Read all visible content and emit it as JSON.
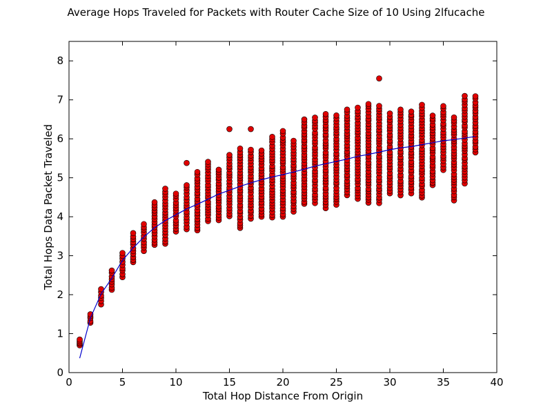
{
  "chart_data": {
    "type": "scatter",
    "title": "Average Hops Traveled for Packets with Router Cache Size of 10 Using 2lfucache",
    "xlabel": "Total Hop Distance From Origin",
    "ylabel": "Total Hops Data Packet Traveled",
    "xlim": [
      0,
      40
    ],
    "ylim": [
      0,
      8.5
    ],
    "xticks": [
      0,
      5,
      10,
      15,
      20,
      25,
      30,
      35,
      40
    ],
    "yticks": [
      0,
      1,
      2,
      3,
      4,
      5,
      6,
      7,
      8
    ],
    "grid": false,
    "colors": {
      "points": "#e00000",
      "point_edge": "#000000",
      "line": "#0000cc"
    },
    "series": [
      {
        "kind": "scatter",
        "ranges": [
          {
            "x": 1,
            "min": 0.7,
            "max": 0.85
          },
          {
            "x": 2,
            "min": 1.28,
            "max": 1.5
          },
          {
            "x": 3,
            "min": 1.75,
            "max": 2.15
          },
          {
            "x": 4,
            "min": 2.12,
            "max": 2.62
          },
          {
            "x": 5,
            "min": 2.45,
            "max": 3.08
          },
          {
            "x": 6,
            "min": 2.82,
            "max": 3.58
          },
          {
            "x": 7,
            "min": 3.12,
            "max": 3.82
          },
          {
            "x": 8,
            "min": 3.28,
            "max": 4.38
          },
          {
            "x": 9,
            "min": 3.3,
            "max": 4.72
          },
          {
            "x": 10,
            "min": 3.62,
            "max": 4.6
          },
          {
            "x": 11,
            "min": 3.68,
            "max": 4.82
          },
          {
            "x": 12,
            "min": 3.65,
            "max": 5.15
          },
          {
            "x": 13,
            "min": 3.88,
            "max": 5.42
          },
          {
            "x": 14,
            "min": 3.9,
            "max": 5.22
          },
          {
            "x": 15,
            "min": 4.0,
            "max": 5.6
          },
          {
            "x": 16,
            "min": 3.7,
            "max": 5.75
          },
          {
            "x": 17,
            "min": 3.95,
            "max": 5.72
          },
          {
            "x": 18,
            "min": 4.0,
            "max": 5.7
          },
          {
            "x": 19,
            "min": 3.98,
            "max": 6.05
          },
          {
            "x": 20,
            "min": 4.0,
            "max": 6.2
          },
          {
            "x": 21,
            "min": 4.12,
            "max": 5.95
          },
          {
            "x": 22,
            "min": 4.32,
            "max": 6.5
          },
          {
            "x": 23,
            "min": 4.35,
            "max": 6.55
          },
          {
            "x": 24,
            "min": 4.22,
            "max": 6.65
          },
          {
            "x": 25,
            "min": 4.3,
            "max": 6.6
          },
          {
            "x": 26,
            "min": 4.55,
            "max": 6.75
          },
          {
            "x": 27,
            "min": 4.45,
            "max": 6.8
          },
          {
            "x": 28,
            "min": 4.35,
            "max": 6.9
          },
          {
            "x": 29,
            "min": 4.35,
            "max": 6.85
          },
          {
            "x": 30,
            "min": 4.6,
            "max": 6.65
          },
          {
            "x": 31,
            "min": 4.55,
            "max": 6.75
          },
          {
            "x": 32,
            "min": 4.6,
            "max": 6.7
          },
          {
            "x": 33,
            "min": 4.48,
            "max": 6.88
          },
          {
            "x": 34,
            "min": 4.8,
            "max": 6.6
          },
          {
            "x": 35,
            "min": 5.2,
            "max": 6.85
          },
          {
            "x": 36,
            "min": 4.42,
            "max": 6.55
          },
          {
            "x": 37,
            "min": 4.85,
            "max": 7.1
          },
          {
            "x": 38,
            "min": 5.65,
            "max": 7.1
          }
        ],
        "outliers": [
          {
            "x": 11,
            "y": 5.38
          },
          {
            "x": 15,
            "y": 6.25
          },
          {
            "x": 17,
            "y": 6.25
          },
          {
            "x": 29,
            "y": 7.55
          }
        ]
      },
      {
        "kind": "line",
        "x": [
          1,
          2,
          3,
          4,
          5,
          6,
          7,
          8,
          9,
          10,
          11,
          12,
          13,
          14,
          15,
          16,
          17,
          18,
          19,
          20,
          21,
          22,
          23,
          24,
          25,
          26,
          27,
          28,
          29,
          30,
          31,
          32,
          33,
          34,
          35,
          36,
          37,
          38
        ],
        "y": [
          0.37,
          1.4,
          2.02,
          2.42,
          2.88,
          3.2,
          3.48,
          3.72,
          3.9,
          4.05,
          4.2,
          4.32,
          4.45,
          4.58,
          4.68,
          4.78,
          4.87,
          4.95,
          5.02,
          5.08,
          5.15,
          5.22,
          5.3,
          5.36,
          5.42,
          5.48,
          5.55,
          5.6,
          5.66,
          5.72,
          5.77,
          5.8,
          5.85,
          5.9,
          5.95,
          5.98,
          6.02,
          6.06
        ]
      }
    ]
  }
}
